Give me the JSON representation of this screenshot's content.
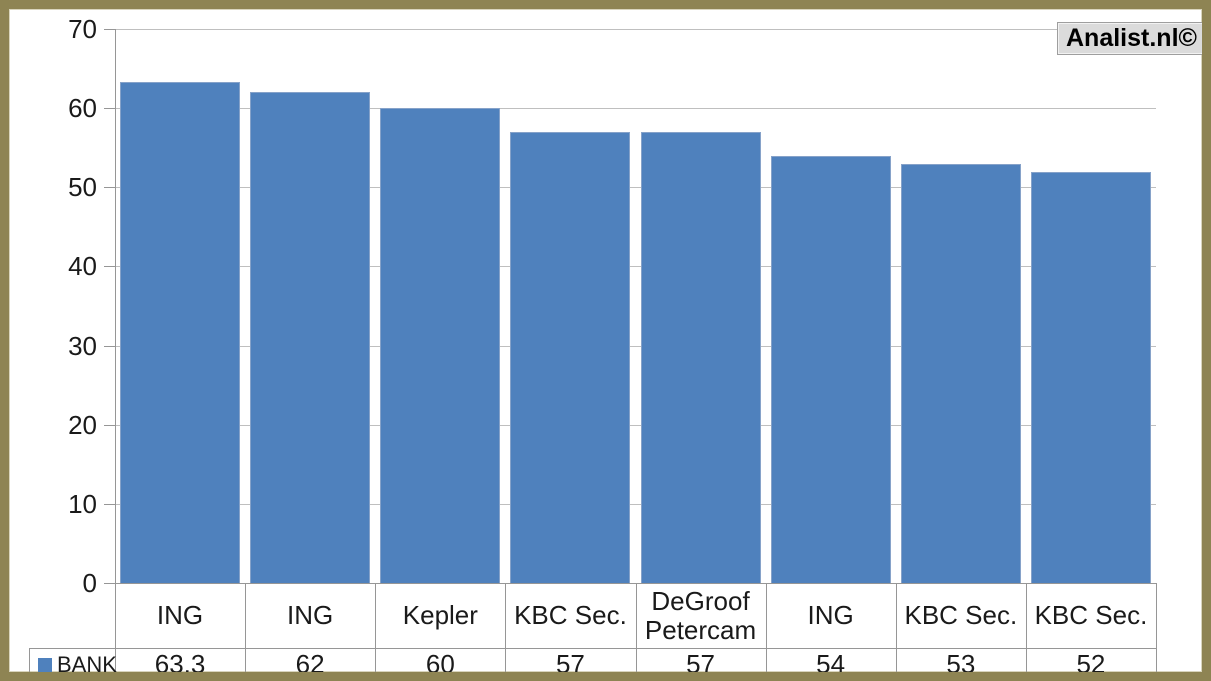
{
  "brand_badge": {
    "text": "Analist.nl©"
  },
  "legend": {
    "label": "BANK",
    "marker_color": "#4F81BD"
  },
  "chart_data": {
    "type": "bar",
    "title": "",
    "xlabel": "",
    "ylabel": "",
    "categories": [
      "ING",
      "ING",
      "Kepler",
      "KBC Sec.",
      "DeGroof Petercam",
      "ING",
      "KBC Sec.",
      "KBC Sec."
    ],
    "series": [
      {
        "name": "BANK",
        "values": [
          63.3,
          62,
          60,
          57,
          57,
          54,
          53,
          52
        ],
        "value_labels": [
          "63,3",
          "62",
          "60",
          "57",
          "57",
          "54",
          "53",
          "52"
        ]
      }
    ],
    "ylim": [
      0,
      70
    ],
    "yticks": [
      0,
      10,
      20,
      30,
      40,
      50,
      60,
      70
    ],
    "grid": true,
    "legend_position": "bottom-left",
    "bar_color": "#4F81BD",
    "bar_border_color": "#86A2C9"
  },
  "colors": {
    "frame": "#8E8453",
    "gridline": "#BFBFBF",
    "axis": "#969696",
    "badge_bg": "#DBDBDB",
    "text": "#1a1a1a"
  }
}
